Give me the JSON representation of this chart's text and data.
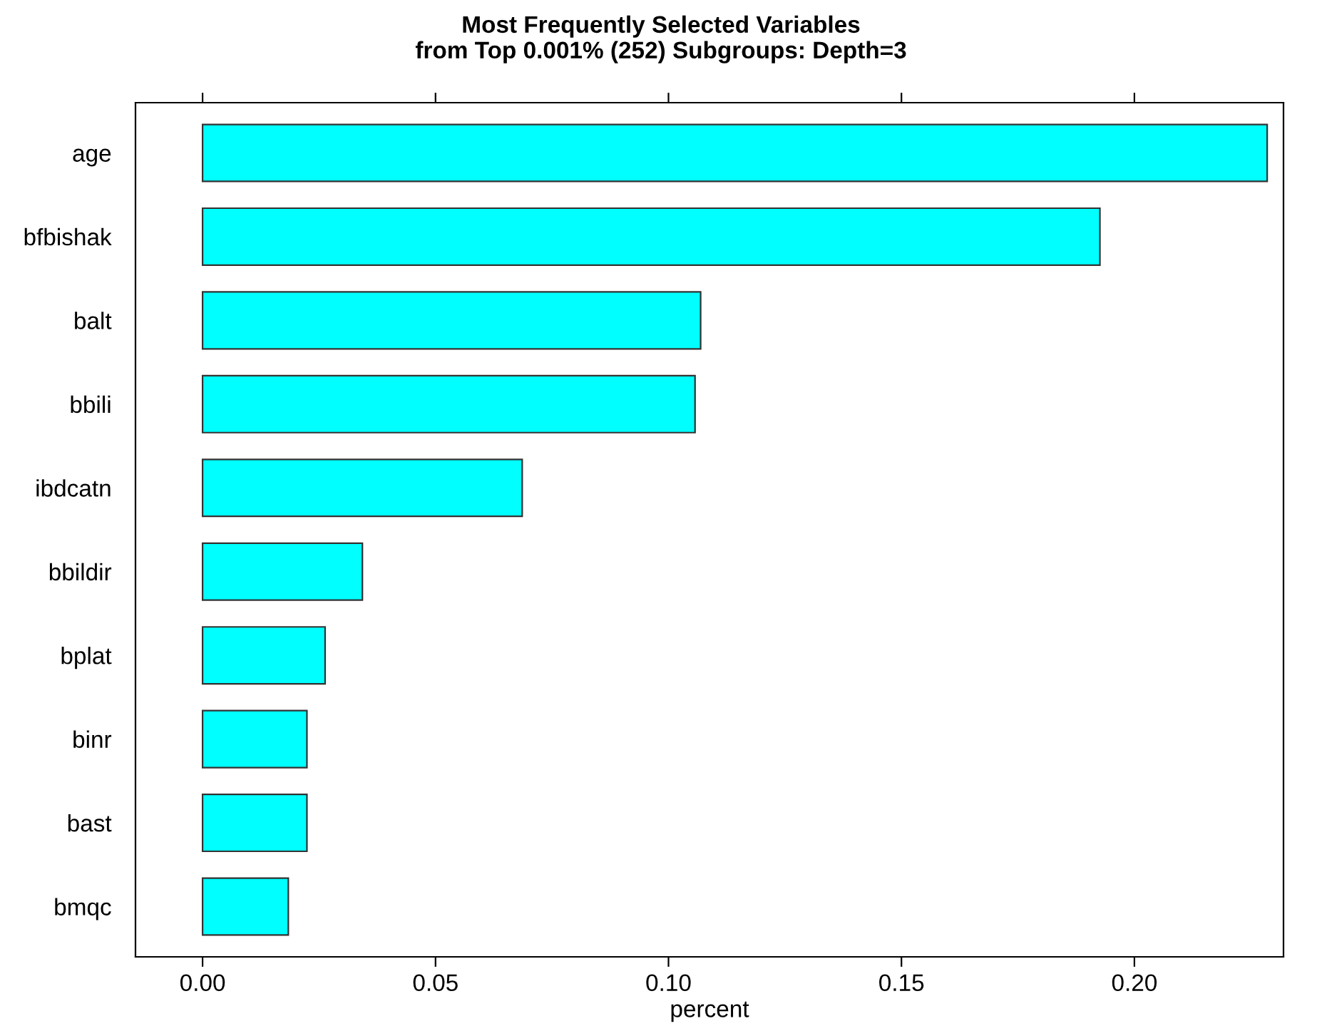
{
  "chart_data": {
    "type": "bar",
    "orientation": "horizontal",
    "title": "Most Frequently Selected Variables\nfrom Top 0.001% (252) Subgroups: Depth=3",
    "xlabel": "percent",
    "categories": [
      "age",
      "bfbishak",
      "balt",
      "bbili",
      "ibdcatn",
      "bbildir",
      "bplat",
      "binr",
      "bast",
      "bmqc"
    ],
    "values": [
      0.2285,
      0.1926,
      0.1069,
      0.1057,
      0.0686,
      0.0343,
      0.0263,
      0.0224,
      0.0224,
      0.0184
    ],
    "color": "#00ffff",
    "xlim": [
      -0.0144,
      0.232
    ],
    "xticks": [
      {
        "value": 0,
        "label": "0.00"
      },
      {
        "value": 0.05,
        "label": "0.05"
      },
      {
        "value": 0.1,
        "label": "0.10"
      },
      {
        "value": 0.15,
        "label": "0.15"
      },
      {
        "value": 0.2,
        "label": "0.20"
      }
    ],
    "grid": false,
    "legend": false
  }
}
